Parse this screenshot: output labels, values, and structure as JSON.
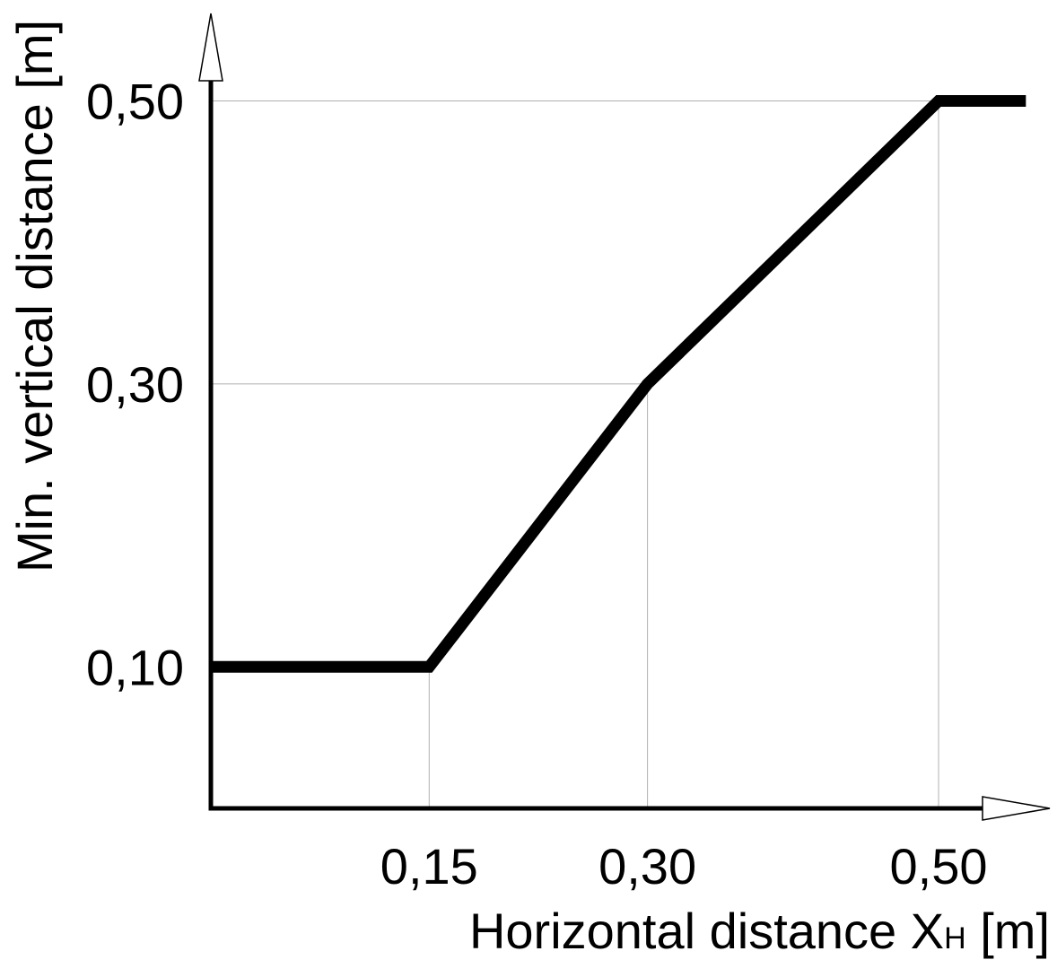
{
  "chart_data": {
    "type": "line",
    "xlabel": "Horizontal distance X",
    "xlabel_subscript": "H",
    "xlabel_unit": " [m]",
    "ylabel": "Min. vertical distance [m]",
    "x_ticks": [
      {
        "value": 0.15,
        "label": "0,15"
      },
      {
        "value": 0.3,
        "label": "0,30"
      },
      {
        "value": 0.5,
        "label": "0,50"
      }
    ],
    "y_ticks": [
      {
        "value": 0.1,
        "label": "0,10"
      },
      {
        "value": 0.3,
        "label": "0,30"
      },
      {
        "value": 0.5,
        "label": "0,50"
      }
    ],
    "series": [
      {
        "points": [
          {
            "x": 0.0,
            "y": 0.1
          },
          {
            "x": 0.15,
            "y": 0.1
          },
          {
            "x": 0.3,
            "y": 0.3
          },
          {
            "x": 0.5,
            "y": 0.5
          },
          {
            "x": 0.56,
            "y": 0.5
          }
        ]
      }
    ],
    "xlim": [
      0.0,
      0.56
    ],
    "ylim": [
      0.0,
      0.5
    ],
    "grid": "drop-lines at tick values",
    "legend": "none",
    "colors": {
      "line": "#000000",
      "grid": "#b0b0b0",
      "axis": "#000000"
    }
  }
}
